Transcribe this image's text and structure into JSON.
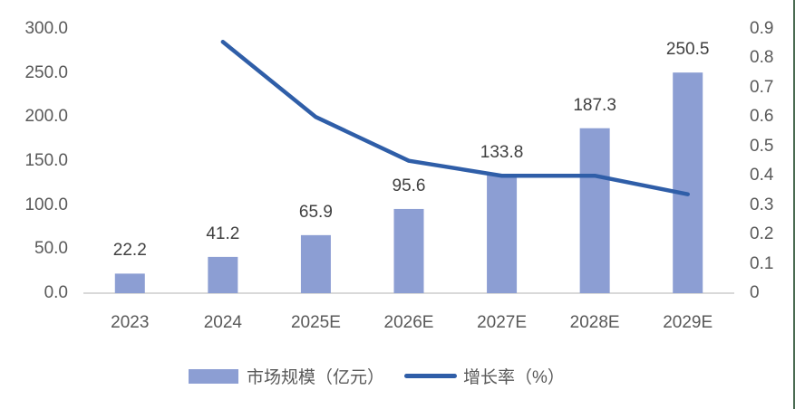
{
  "chart_data": {
    "type": "combo",
    "title": "",
    "categories": [
      "2023",
      "2024",
      "2025E",
      "2026E",
      "2027E",
      "2028E",
      "2029E"
    ],
    "series": [
      {
        "name": "市场规模（亿元）",
        "type": "bar",
        "axis": "left",
        "color": "#8c9ed3",
        "values": [
          22.2,
          41.2,
          65.9,
          95.6,
          133.8,
          187.3,
          250.5
        ],
        "labels": [
          "22.2",
          "41.2",
          "65.9",
          "95.6",
          "133.8",
          "187.3",
          "250.5"
        ]
      },
      {
        "name": "增长率（%）",
        "type": "line",
        "axis": "right",
        "color": "#2f5ea8",
        "values": [
          null,
          0.856,
          0.6,
          0.451,
          0.4,
          0.4,
          0.337
        ]
      }
    ],
    "left_axis": {
      "min": 0,
      "max": 300,
      "ticks": [
        "300.0",
        "250.0",
        "200.0",
        "150.0",
        "100.0",
        "50.0",
        "0.0"
      ]
    },
    "right_axis": {
      "min": 0,
      "max": 0.9,
      "ticks": [
        "0.9",
        "0.8",
        "0.7",
        "0.6",
        "0.5",
        "0.4",
        "0.3",
        "0.2",
        "0.1",
        "0"
      ]
    },
    "grid": false,
    "legend_position": "bottom",
    "axis_line_color": "#d9d9d9",
    "side_divider_color": "#4a6b52"
  }
}
